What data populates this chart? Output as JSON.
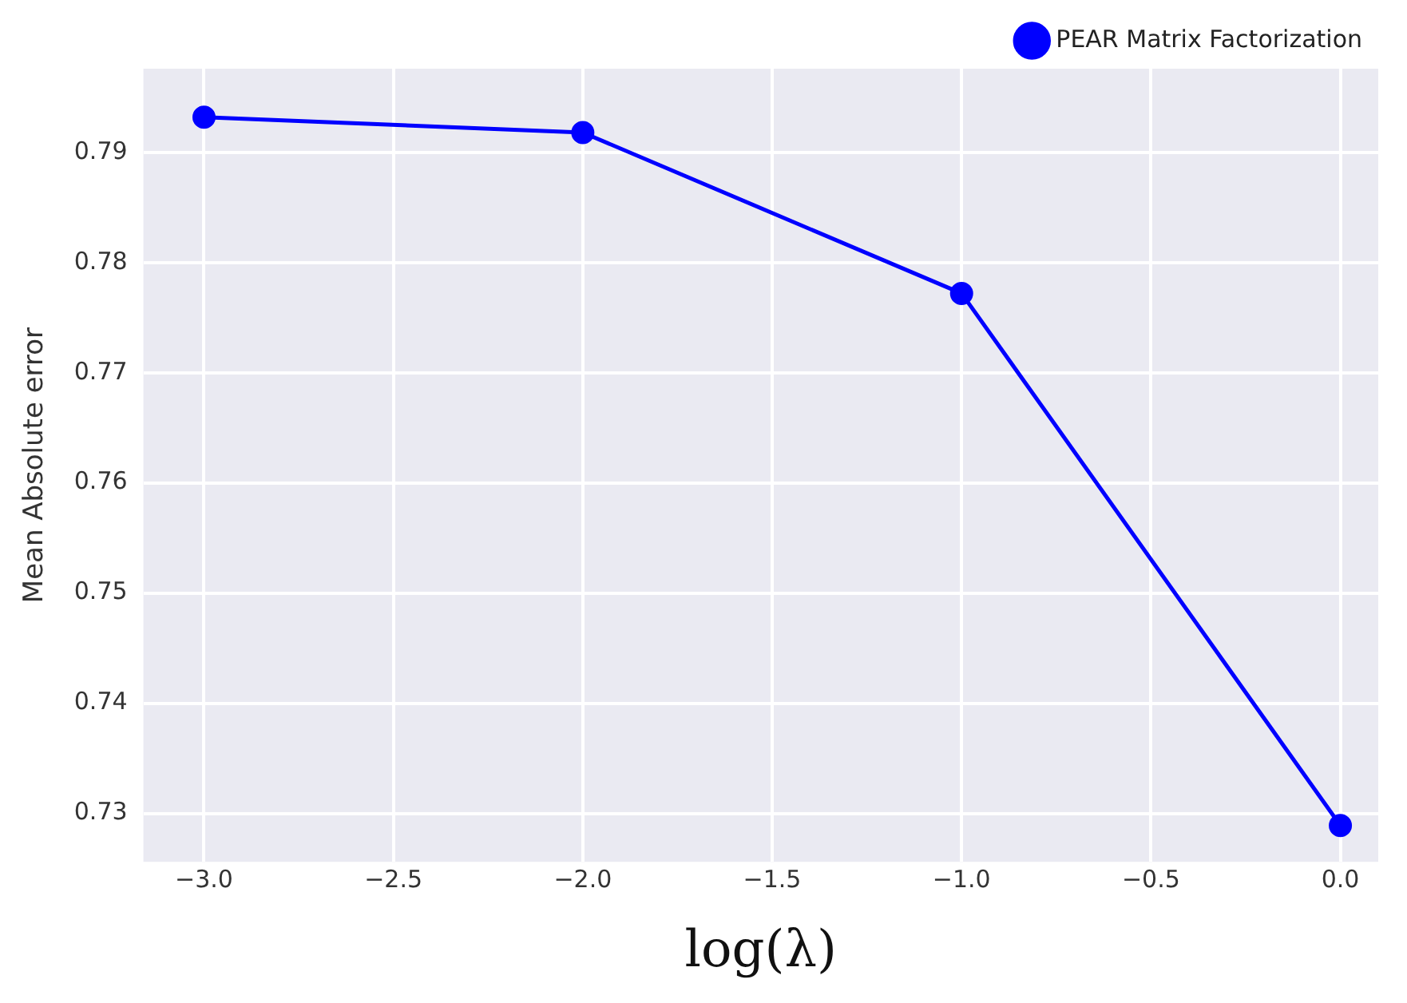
{
  "chart_data": {
    "type": "line",
    "xlabel": "log(λ)",
    "ylabel": "Mean Absolute error",
    "x": [
      -3.0,
      -2.0,
      -1.0,
      0.0
    ],
    "series": [
      {
        "name": "PEAR Matrix Factorization",
        "color": "#0000ff",
        "values": [
          0.7932,
          0.7918,
          0.7772,
          0.7289
        ]
      }
    ],
    "xlim": [
      -3.16,
      0.1
    ],
    "xticks": [
      {
        "value": -3,
        "label": "−3.0"
      },
      {
        "value": -2.5,
        "label": "−2.5"
      },
      {
        "value": -2,
        "label": "−2.0"
      },
      {
        "value": -1.5,
        "label": "−1.5"
      },
      {
        "value": -1,
        "label": "−1.0"
      },
      {
        "value": -0.5,
        "label": "−0.5"
      },
      {
        "value": 0,
        "label": "0.0"
      }
    ],
    "ylim": [
      0.7256,
      0.7976
    ],
    "yticks": [
      0.73,
      0.74,
      0.75,
      0.76,
      0.77,
      0.78,
      0.79
    ],
    "grid": true,
    "legend": "top right",
    "marker": "circle",
    "line_style": "solid"
  }
}
